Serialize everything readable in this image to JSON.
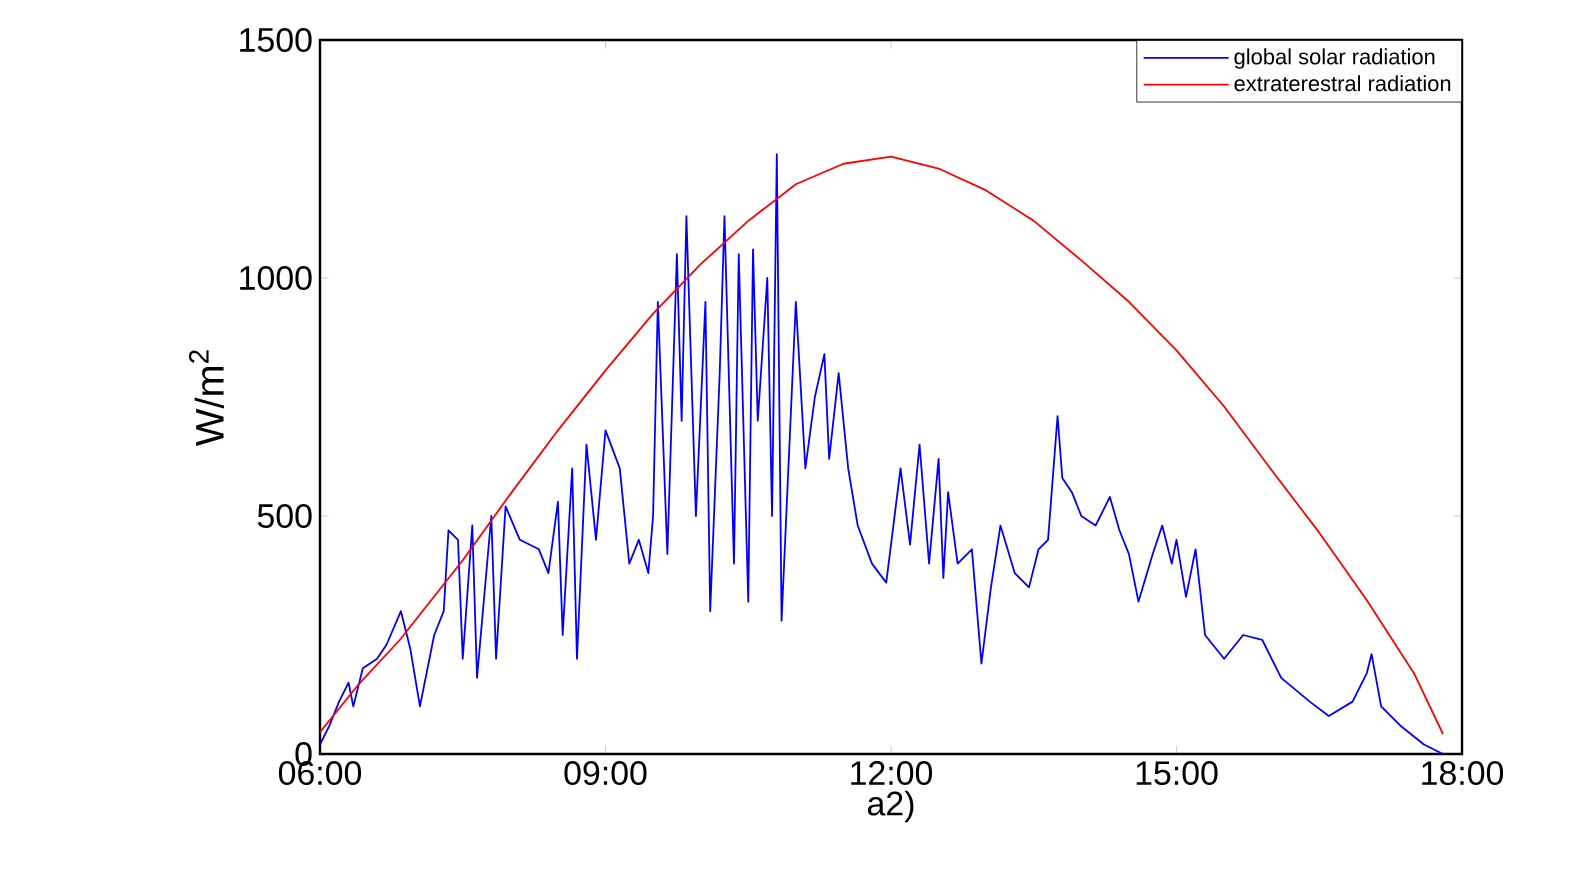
{
  "chart_data": {
    "type": "line",
    "xlabel": "a2)",
    "ylabel": "W/m$^{2}$",
    "xlim": [
      6,
      18
    ],
    "ylim": [
      0,
      1500
    ],
    "xticks": [
      {
        "value": 6,
        "label": "06:00"
      },
      {
        "value": 9,
        "label": "09:00"
      },
      {
        "value": 12,
        "label": "12:00"
      },
      {
        "value": 15,
        "label": "15:00"
      },
      {
        "value": 18,
        "label": "18:00"
      }
    ],
    "yticks": [
      0,
      500,
      1000,
      1500
    ],
    "legend": "top right",
    "grid": false,
    "series": [
      {
        "name": "global solar radiation",
        "color": "#0000ff",
        "x": [
          6.0,
          6.1,
          6.2,
          6.3,
          6.35,
          6.45,
          6.6,
          6.7,
          6.85,
          6.95,
          7.05,
          7.2,
          7.3,
          7.35,
          7.45,
          7.5,
          7.6,
          7.65,
          7.8,
          7.85,
          7.95,
          8.1,
          8.3,
          8.4,
          8.5,
          8.55,
          8.65,
          8.7,
          8.8,
          8.9,
          9.0,
          9.15,
          9.25,
          9.35,
          9.45,
          9.5,
          9.55,
          9.65,
          9.75,
          9.8,
          9.85,
          9.95,
          10.05,
          10.1,
          10.2,
          10.25,
          10.35,
          10.4,
          10.5,
          10.55,
          10.6,
          10.7,
          10.75,
          10.8,
          10.85,
          11.0,
          11.1,
          11.2,
          11.3,
          11.35,
          11.45,
          11.55,
          11.65,
          11.8,
          11.95,
          12.1,
          12.2,
          12.3,
          12.4,
          12.5,
          12.55,
          12.6,
          12.7,
          12.85,
          12.95,
          13.05,
          13.15,
          13.3,
          13.45,
          13.55,
          13.65,
          13.75,
          13.8,
          13.9,
          14.0,
          14.15,
          14.3,
          14.4,
          14.5,
          14.6,
          14.75,
          14.85,
          14.95,
          15.0,
          15.1,
          15.2,
          15.3,
          15.5,
          15.7,
          15.9,
          16.1,
          16.4,
          16.6,
          16.85,
          17.0,
          17.05,
          17.15,
          17.35,
          17.6,
          17.8
        ],
        "values": [
          20,
          60,
          110,
          150,
          100,
          180,
          200,
          230,
          300,
          220,
          100,
          250,
          300,
          470,
          450,
          200,
          480,
          160,
          500,
          200,
          520,
          450,
          430,
          380,
          530,
          250,
          600,
          200,
          650,
          450,
          680,
          600,
          400,
          450,
          380,
          500,
          950,
          420,
          1050,
          700,
          1130,
          500,
          950,
          300,
          800,
          1130,
          400,
          1050,
          320,
          1060,
          700,
          1000,
          500,
          1260,
          280,
          950,
          600,
          750,
          840,
          620,
          800,
          600,
          480,
          400,
          360,
          600,
          440,
          650,
          400,
          620,
          370,
          550,
          400,
          430,
          190,
          350,
          480,
          380,
          350,
          430,
          450,
          710,
          580,
          550,
          500,
          480,
          540,
          470,
          420,
          320,
          420,
          480,
          400,
          450,
          330,
          430,
          250,
          200,
          250,
          240,
          160,
          110,
          80,
          110,
          170,
          210,
          100,
          60,
          20,
          0
        ]
      },
      {
        "name": "extraterestral radiation",
        "color": "#ff0000",
        "x": [
          6.0,
          6.4,
          6.84,
          7.5,
          8.0,
          8.5,
          9.0,
          9.5,
          10.0,
          10.5,
          11.0,
          11.5,
          12.0,
          12.5,
          13.0,
          13.5,
          14.0,
          14.5,
          15.0,
          15.5,
          16.0,
          16.5,
          17.0,
          17.5,
          17.8
        ],
        "values": [
          46,
          145,
          240,
          407,
          546,
          680,
          806,
          925,
          1029,
          1120,
          1197,
          1240,
          1255,
          1230,
          1184,
          1120,
          1037,
          950,
          848,
          730,
          596,
          465,
          323,
          168,
          42
        ]
      }
    ]
  }
}
